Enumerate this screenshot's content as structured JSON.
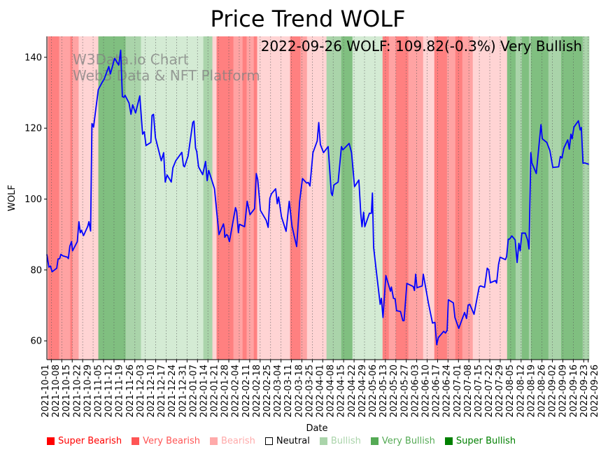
{
  "chart_data": {
    "type": "line",
    "title": "Price Trend WOLF",
    "xlabel": "Date",
    "ylabel": "WOLF",
    "annotation": "2022-09-26 WOLF: 109.82(-0.3%) Very Bullish",
    "watermark": [
      "W3Data.io Chart",
      "Web3 Data & NFT Platform"
    ],
    "x_unit": "days since 2021-10-01",
    "xlim": [
      -3,
      360.6
    ],
    "ylim": [
      54.7,
      145.9
    ],
    "grid": "vertical dotted at x ticks",
    "yticks": [
      60,
      80,
      100,
      120,
      140
    ],
    "xtick_labels": [
      "2021-10-01",
      "2021-10-08",
      "2021-10-15",
      "2021-10-22",
      "2021-10-29",
      "2021-11-05",
      "2021-11-12",
      "2021-11-19",
      "2021-11-26",
      "2021-12-03",
      "2021-12-10",
      "2021-12-17",
      "2021-12-24",
      "2021-12-31",
      "2022-01-07",
      "2022-01-14",
      "2022-01-21",
      "2022-01-28",
      "2022-02-04",
      "2022-02-11",
      "2022-02-18",
      "2022-02-25",
      "2022-03-04",
      "2022-03-11",
      "2022-03-18",
      "2022-03-25",
      "2022-04-01",
      "2022-04-08",
      "2022-04-15",
      "2022-04-22",
      "2022-04-29",
      "2022-05-06",
      "2022-05-13",
      "2022-05-20",
      "2022-05-27",
      "2022-06-03",
      "2022-06-10",
      "2022-06-17",
      "2022-06-24",
      "2022-07-01",
      "2022-07-08",
      "2022-07-15",
      "2022-07-22",
      "2022-07-29",
      "2022-08-05",
      "2022-08-12",
      "2022-08-19",
      "2022-08-26",
      "2022-09-02",
      "2022-09-09",
      "2022-09-16",
      "2022-09-23",
      "2022-09-26"
    ],
    "xtick_days": [
      0,
      7,
      14,
      21,
      28,
      35,
      42,
      49,
      56,
      63,
      70,
      77,
      84,
      91,
      98,
      105,
      112,
      119,
      126,
      133,
      140,
      147,
      154,
      161,
      168,
      175,
      182,
      189,
      196,
      203,
      210,
      217,
      224,
      231,
      238,
      245,
      252,
      259,
      266,
      273,
      280,
      287,
      294,
      301,
      308,
      315,
      322,
      329,
      336,
      343,
      350,
      357,
      360
    ],
    "series": [
      {
        "name": "WOLF",
        "color": "#0000ff",
        "points": [
          [
            -3,
            84.4
          ],
          [
            -1.7,
            80.8
          ],
          [
            -0.6,
            81.1
          ],
          [
            0.5,
            79.5
          ],
          [
            3.6,
            80.5
          ],
          [
            4.5,
            83.1
          ],
          [
            5.6,
            83.2
          ],
          [
            6.4,
            84.4
          ],
          [
            7.7,
            84.0
          ],
          [
            10.8,
            83.6
          ],
          [
            11.4,
            83.2
          ],
          [
            12.4,
            86.7
          ],
          [
            13.5,
            88.0
          ],
          [
            14.2,
            85.4
          ],
          [
            17.4,
            88.0
          ],
          [
            18.5,
            93.6
          ],
          [
            19.4,
            90.5
          ],
          [
            20.2,
            91.2
          ],
          [
            21.6,
            89.7
          ],
          [
            24.4,
            92.3
          ],
          [
            25.2,
            93.6
          ],
          [
            26.3,
            91.0
          ],
          [
            27.2,
            121.3
          ],
          [
            28.3,
            120.3
          ],
          [
            31.5,
            130.9
          ],
          [
            34.3,
            133.1
          ],
          [
            35.4,
            133.8
          ],
          [
            38.5,
            137.4
          ],
          [
            39.6,
            135.3
          ],
          [
            42.4,
            139.7
          ],
          [
            45.2,
            137.8
          ],
          [
            46.5,
            142.0
          ],
          [
            47.6,
            128.9
          ],
          [
            48.7,
            128.7
          ],
          [
            49.4,
            129.3
          ],
          [
            52.1,
            127.1
          ],
          [
            53.4,
            123.9
          ],
          [
            54.5,
            126.6
          ],
          [
            56.5,
            124.3
          ],
          [
            59.3,
            129.1
          ],
          [
            61.2,
            118.3
          ],
          [
            62.3,
            119.0
          ],
          [
            63.5,
            115.1
          ],
          [
            66.7,
            116.0
          ],
          [
            67.5,
            123.6
          ],
          [
            68.5,
            123.9
          ],
          [
            69.8,
            117.3
          ],
          [
            73.7,
            110.8
          ],
          [
            75.3,
            113.1
          ],
          [
            76.4,
            104.8
          ],
          [
            77.6,
            106.8
          ],
          [
            80.4,
            104.8
          ],
          [
            81.5,
            108.8
          ],
          [
            83.4,
            110.8
          ],
          [
            87.5,
            113.2
          ],
          [
            88.6,
            109.4
          ],
          [
            89.3,
            109.1
          ],
          [
            91.7,
            112.1
          ],
          [
            94.8,
            121.6
          ],
          [
            95.6,
            122.0
          ],
          [
            96.7,
            114.4
          ],
          [
            97.5,
            113.4
          ],
          [
            98.7,
            109.1
          ],
          [
            101.5,
            106.9
          ],
          [
            103.4,
            110.6
          ],
          [
            104.5,
            105.2
          ],
          [
            105.5,
            108.1
          ],
          [
            109.4,
            102.9
          ],
          [
            110.9,
            96.3
          ],
          [
            112.4,
            90.0
          ],
          [
            115.4,
            93.0
          ],
          [
            116.0,
            91.7
          ],
          [
            116.3,
            89.2
          ],
          [
            117.5,
            90.0
          ],
          [
            118.3,
            89.7
          ],
          [
            119.4,
            88.0
          ],
          [
            123.5,
            97.6
          ],
          [
            124.3,
            96.5
          ],
          [
            125.4,
            90.5
          ],
          [
            126.1,
            92.9
          ],
          [
            129.6,
            92.2
          ],
          [
            131.3,
            99.4
          ],
          [
            133.2,
            95.6
          ],
          [
            136.3,
            97.3
          ],
          [
            137.4,
            107.2
          ],
          [
            138.4,
            105.5
          ],
          [
            140.2,
            96.8
          ],
          [
            144.1,
            94.0
          ],
          [
            145.4,
            92.0
          ],
          [
            146.5,
            100.2
          ],
          [
            147.6,
            101.5
          ],
          [
            150.4,
            102.9
          ],
          [
            151.5,
            98.7
          ],
          [
            152.4,
            100.6
          ],
          [
            154.3,
            95.0
          ],
          [
            157.4,
            90.9
          ],
          [
            159.5,
            99.4
          ],
          [
            161.4,
            92.3
          ],
          [
            164.5,
            86.6
          ],
          [
            166.5,
            99.4
          ],
          [
            168.4,
            105.8
          ],
          [
            171.2,
            104.5
          ],
          [
            172.3,
            104.7
          ],
          [
            173.4,
            103.7
          ],
          [
            175.4,
            113.1
          ],
          [
            178.3,
            116.4
          ],
          [
            179.3,
            121.6
          ],
          [
            180.4,
            115.4
          ],
          [
            182.5,
            113.1
          ],
          [
            185.6,
            114.8
          ],
          [
            187.7,
            101.7
          ],
          [
            188.4,
            101.0
          ],
          [
            189.5,
            104.0
          ],
          [
            192.3,
            104.8
          ],
          [
            194.5,
            114.8
          ],
          [
            195.5,
            113.9
          ],
          [
            199.7,
            115.7
          ],
          [
            201.3,
            113.1
          ],
          [
            203.3,
            103.5
          ],
          [
            206.2,
            105.4
          ],
          [
            207.5,
            95.8
          ],
          [
            208.3,
            92.2
          ],
          [
            209.4,
            96.3
          ],
          [
            210.2,
            92.2
          ],
          [
            213.3,
            96.0
          ],
          [
            214.6,
            96.0
          ],
          [
            215.3,
            101.7
          ],
          [
            216.1,
            86.4
          ],
          [
            217.7,
            80.5
          ],
          [
            220.5,
            70.3
          ],
          [
            221.3,
            72.0
          ],
          [
            222.4,
            66.6
          ],
          [
            224.3,
            78.4
          ],
          [
            227.4,
            74.0
          ],
          [
            228.0,
            75.2
          ],
          [
            229.4,
            72.0
          ],
          [
            230.5,
            71.9
          ],
          [
            231.5,
            68.5
          ],
          [
            234.1,
            68.3
          ],
          [
            235.7,
            65.7
          ],
          [
            236.5,
            65.7
          ],
          [
            238.4,
            76.2
          ],
          [
            242.7,
            75.3
          ],
          [
            243.5,
            74.2
          ],
          [
            244.3,
            78.8
          ],
          [
            245.2,
            75.0
          ],
          [
            248.7,
            75.5
          ],
          [
            249.4,
            78.8
          ],
          [
            252.9,
            70.6
          ],
          [
            255.6,
            65.0
          ],
          [
            257.2,
            65.2
          ],
          [
            258.4,
            58.9
          ],
          [
            259.5,
            60.9
          ],
          [
            263.1,
            62.7
          ],
          [
            264.3,
            62.2
          ],
          [
            265.4,
            63.0
          ],
          [
            266.2,
            71.6
          ],
          [
            269.6,
            70.7
          ],
          [
            270.6,
            66.6
          ],
          [
            273.2,
            63.5
          ],
          [
            277.1,
            68.0
          ],
          [
            278.4,
            66.3
          ],
          [
            279.5,
            70.1
          ],
          [
            280.6,
            70.3
          ],
          [
            283.4,
            67.5
          ],
          [
            286.9,
            75.2
          ],
          [
            287.8,
            75.5
          ],
          [
            290.5,
            75.1
          ],
          [
            292.3,
            80.5
          ],
          [
            293.3,
            80.0
          ],
          [
            294.4,
            76.4
          ],
          [
            297.8,
            77.0
          ],
          [
            298.6,
            76.3
          ],
          [
            299.9,
            81.6
          ],
          [
            300.9,
            83.6
          ],
          [
            304.5,
            82.9
          ],
          [
            305.3,
            83.8
          ],
          [
            306.4,
            88.7
          ],
          [
            307.2,
            88.7
          ],
          [
            308.8,
            89.6
          ],
          [
            311.0,
            88.5
          ],
          [
            312.3,
            82.1
          ],
          [
            313.5,
            87.5
          ],
          [
            314.4,
            85.4
          ],
          [
            315.5,
            90.4
          ],
          [
            317.8,
            90.4
          ],
          [
            319.4,
            88.4
          ],
          [
            320.3,
            85.9
          ],
          [
            321.5,
            113.1
          ],
          [
            322.2,
            110.2
          ],
          [
            325.2,
            107.2
          ],
          [
            328.3,
            121.0
          ],
          [
            329.2,
            117.0
          ],
          [
            332.2,
            116.0
          ],
          [
            334.3,
            113.7
          ],
          [
            336.3,
            108.9
          ],
          [
            340.2,
            109.1
          ],
          [
            341.3,
            112.0
          ],
          [
            342.4,
            111.6
          ],
          [
            343.7,
            114.4
          ],
          [
            346.3,
            116.7
          ],
          [
            347.3,
            114.1
          ],
          [
            348.4,
            118.3
          ],
          [
            349.2,
            117.0
          ],
          [
            350.4,
            120.3
          ],
          [
            353.4,
            122.1
          ],
          [
            354.6,
            119.5
          ],
          [
            355.4,
            120.2
          ],
          [
            356.5,
            110.1
          ],
          [
            357.7,
            110.2
          ],
          [
            360.4,
            109.8
          ]
        ]
      }
    ],
    "band_colors": {
      "super_bearish": "#ff8080",
      "very_bearish": "#ffa3a3",
      "bearish": "#ffd4d4",
      "bullish": "#d4ebd4",
      "very_bullish": "#aad4aa",
      "super_bullish": "#80bf80"
    },
    "bands": [
      [
        -3,
        -2.3,
        "bearish"
      ],
      [
        -2.3,
        5.2,
        "super_bearish"
      ],
      [
        5.2,
        12.7,
        "very_bearish"
      ],
      [
        12.7,
        14.1,
        "super_bearish"
      ],
      [
        14.1,
        18.3,
        "very_bearish"
      ],
      [
        18.3,
        31.5,
        "bearish"
      ],
      [
        31.5,
        49.8,
        "super_bullish"
      ],
      [
        49.8,
        60.1,
        "very_bullish"
      ],
      [
        60.1,
        101.9,
        "bullish"
      ],
      [
        101.9,
        108,
        "very_bullish"
      ],
      [
        108,
        110.8,
        "bearish"
      ],
      [
        110.8,
        122.1,
        "super_bearish"
      ],
      [
        122.1,
        128.2,
        "very_bearish"
      ],
      [
        128.2,
        131,
        "super_bearish"
      ],
      [
        131,
        135.7,
        "very_bearish"
      ],
      [
        135.7,
        138,
        "super_bearish"
      ],
      [
        138,
        160.1,
        "bearish"
      ],
      [
        160.1,
        167.1,
        "super_bearish"
      ],
      [
        167.1,
        171.4,
        "very_bearish"
      ],
      [
        171.4,
        184.5,
        "bearish"
      ],
      [
        184.5,
        194.4,
        "very_bullish"
      ],
      [
        194.4,
        201.9,
        "super_bullish"
      ],
      [
        201.9,
        222.1,
        "bullish"
      ],
      [
        222.1,
        226.3,
        "super_bearish"
      ],
      [
        226.3,
        231,
        "very_bearish"
      ],
      [
        231,
        239.4,
        "super_bearish"
      ],
      [
        239.4,
        249.3,
        "very_bearish"
      ],
      [
        249.3,
        256.8,
        "bearish"
      ],
      [
        256.8,
        265.3,
        "super_bearish"
      ],
      [
        265.3,
        270.9,
        "very_bearish"
      ],
      [
        270.9,
        275.6,
        "super_bearish"
      ],
      [
        275.6,
        282.6,
        "very_bearish"
      ],
      [
        282.6,
        305.6,
        "bearish"
      ],
      [
        305.6,
        311.3,
        "super_bullish"
      ],
      [
        311.3,
        315.5,
        "very_bullish"
      ],
      [
        315.5,
        320.2,
        "super_bullish"
      ],
      [
        320.2,
        321.6,
        "very_bullish"
      ],
      [
        321.6,
        333.3,
        "super_bullish"
      ],
      [
        333.3,
        341.8,
        "very_bullish"
      ],
      [
        341.8,
        356.3,
        "super_bullish"
      ],
      [
        356.3,
        360.6,
        "very_bullish"
      ]
    ],
    "legend": {
      "placement": "bottom",
      "items": [
        {
          "label": "Super Bearish",
          "color": "#ff0000",
          "text_color": "#ff0000"
        },
        {
          "label": "Very Bearish",
          "color": "#ff5555",
          "text_color": "#ff5555"
        },
        {
          "label": "Bearish",
          "color": "#ffaaaa",
          "text_color": "#ffaaaa"
        },
        {
          "label": "Neutral",
          "color": "#ffffff",
          "text_color": "#000000"
        },
        {
          "label": "Bullish",
          "color": "#aad4aa",
          "text_color": "#aad4aa"
        },
        {
          "label": "Very Bullish",
          "color": "#55aa55",
          "text_color": "#55aa55"
        },
        {
          "label": "Super Bullish",
          "color": "#008000",
          "text_color": "#008000"
        }
      ]
    }
  }
}
